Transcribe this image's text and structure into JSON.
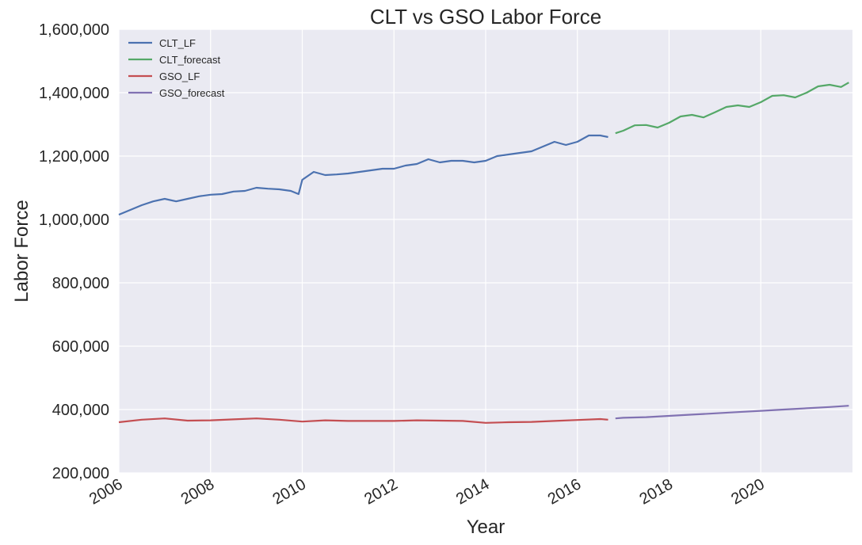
{
  "chart_data": {
    "type": "line",
    "title": "CLT vs GSO Labor Force",
    "xlabel": "Year",
    "ylabel": "Labor Force",
    "xlim": [
      2006.0,
      2022.0
    ],
    "ylim": [
      200000,
      1600000
    ],
    "x_ticks": [
      "2006",
      "2008",
      "2010",
      "2012",
      "2014",
      "2016",
      "2018",
      "2020"
    ],
    "y_ticks": [
      "200,000",
      "400,000",
      "600,000",
      "800,000",
      "1,000,000",
      "1,200,000",
      "1,400,000",
      "1,600,000"
    ],
    "grid": true,
    "legend_position": "upper-left",
    "series": [
      {
        "name": "CLT_LF",
        "color": "#4c72b0",
        "x": [
          2006.0,
          2006.25,
          2006.5,
          2006.75,
          2007.0,
          2007.25,
          2007.5,
          2007.75,
          2008.0,
          2008.25,
          2008.5,
          2008.75,
          2009.0,
          2009.25,
          2009.5,
          2009.75,
          2009.92,
          2010.0,
          2010.25,
          2010.5,
          2010.75,
          2011.0,
          2011.25,
          2011.5,
          2011.75,
          2012.0,
          2012.25,
          2012.5,
          2012.75,
          2013.0,
          2013.25,
          2013.5,
          2013.75,
          2014.0,
          2014.25,
          2014.5,
          2014.75,
          2015.0,
          2015.25,
          2015.5,
          2015.75,
          2016.0,
          2016.25,
          2016.5,
          2016.67
        ],
        "values": [
          1015000,
          1030000,
          1045000,
          1057000,
          1065000,
          1057000,
          1065000,
          1073000,
          1078000,
          1080000,
          1088000,
          1090000,
          1100000,
          1097000,
          1095000,
          1090000,
          1080000,
          1125000,
          1150000,
          1140000,
          1142000,
          1145000,
          1150000,
          1155000,
          1160000,
          1160000,
          1170000,
          1175000,
          1190000,
          1180000,
          1185000,
          1185000,
          1180000,
          1185000,
          1200000,
          1205000,
          1210000,
          1215000,
          1230000,
          1245000,
          1235000,
          1245000,
          1265000,
          1265000,
          1260000
        ]
      },
      {
        "name": "CLT_forecast",
        "color": "#55a868",
        "x": [
          2016.83,
          2017.0,
          2017.25,
          2017.5,
          2017.75,
          2018.0,
          2018.25,
          2018.5,
          2018.75,
          2019.0,
          2019.25,
          2019.5,
          2019.75,
          2020.0,
          2020.25,
          2020.5,
          2020.75,
          2021.0,
          2021.25,
          2021.5,
          2021.75,
          2021.92
        ],
        "values": [
          1272000,
          1280000,
          1297000,
          1298000,
          1290000,
          1305000,
          1325000,
          1330000,
          1322000,
          1338000,
          1355000,
          1360000,
          1355000,
          1370000,
          1390000,
          1392000,
          1385000,
          1400000,
          1420000,
          1425000,
          1418000,
          1432000
        ]
      },
      {
        "name": "GSO_LF",
        "color": "#c44e52",
        "x": [
          2006.0,
          2006.5,
          2007.0,
          2007.5,
          2008.0,
          2008.5,
          2009.0,
          2009.5,
          2010.0,
          2010.5,
          2011.0,
          2011.5,
          2012.0,
          2012.5,
          2013.0,
          2013.5,
          2014.0,
          2014.5,
          2015.0,
          2015.5,
          2016.0,
          2016.5,
          2016.67
        ],
        "values": [
          360000,
          368000,
          372000,
          365000,
          366000,
          369000,
          372000,
          368000,
          362000,
          366000,
          364000,
          364000,
          364000,
          366000,
          365000,
          364000,
          358000,
          360000,
          361000,
          364000,
          367000,
          370000,
          368000
        ]
      },
      {
        "name": "GSO_forecast",
        "color": "#8172b2",
        "x": [
          2016.83,
          2017.0,
          2017.5,
          2018.0,
          2018.5,
          2019.0,
          2019.5,
          2020.0,
          2020.5,
          2021.0,
          2021.5,
          2021.92
        ],
        "values": [
          372000,
          374000,
          376000,
          380000,
          384000,
          388000,
          392000,
          396000,
          400000,
          404000,
          408000,
          412000
        ]
      }
    ]
  }
}
